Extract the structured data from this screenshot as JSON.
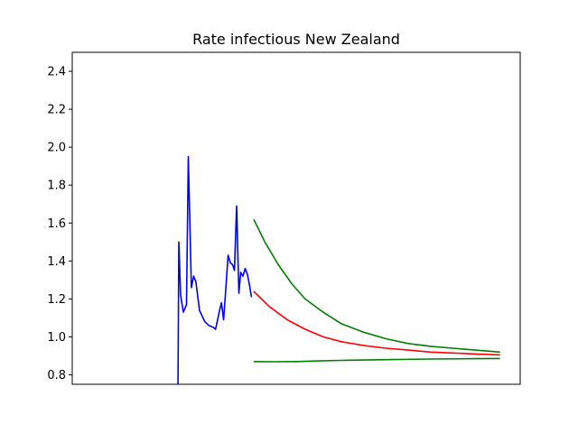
{
  "chart_data": {
    "type": "line",
    "title": "Rate infectious New Zealand",
    "xlabel": "",
    "ylabel": "",
    "ylim": [
      0.75,
      2.5
    ],
    "xlim": [
      0,
      100
    ],
    "x_ticks_visible": false,
    "yticks": [
      "0.8",
      "1.0",
      "1.2",
      "1.4",
      "1.6",
      "1.8",
      "2.0",
      "2.2",
      "2.4"
    ],
    "grid": false,
    "legend": "none",
    "series": [
      {
        "color": "#0000ff",
        "points": [
          [
            23.6,
            0.75
          ],
          [
            23.8,
            1.5
          ],
          [
            24.2,
            1.22
          ],
          [
            24.8,
            1.13
          ],
          [
            25.5,
            1.17
          ],
          [
            25.9,
            1.95
          ],
          [
            26.6,
            1.26
          ],
          [
            27.1,
            1.32
          ],
          [
            27.6,
            1.29
          ],
          [
            28.4,
            1.14
          ],
          [
            29.0,
            1.11
          ],
          [
            29.6,
            1.08
          ],
          [
            30.5,
            1.06
          ],
          [
            31.5,
            1.05
          ],
          [
            32.0,
            1.04
          ],
          [
            32.8,
            1.13
          ],
          [
            33.3,
            1.18
          ],
          [
            33.8,
            1.09
          ],
          [
            34.3,
            1.26
          ],
          [
            34.8,
            1.43
          ],
          [
            35.3,
            1.39
          ],
          [
            35.8,
            1.38
          ],
          [
            36.2,
            1.35
          ],
          [
            36.7,
            1.69
          ],
          [
            37.2,
            1.23
          ],
          [
            37.6,
            1.34
          ],
          [
            38.1,
            1.32
          ],
          [
            38.6,
            1.36
          ],
          [
            39.1,
            1.33
          ],
          [
            39.6,
            1.27
          ],
          [
            40.0,
            1.21
          ]
        ]
      },
      {
        "color": "#ff0000",
        "points": [
          [
            40.5,
            1.24
          ],
          [
            44,
            1.16
          ],
          [
            48,
            1.09
          ],
          [
            52,
            1.04
          ],
          [
            56,
            1.0
          ],
          [
            60,
            0.975
          ],
          [
            65,
            0.955
          ],
          [
            70,
            0.94
          ],
          [
            75,
            0.93
          ],
          [
            80,
            0.92
          ],
          [
            85,
            0.915
          ],
          [
            90,
            0.91
          ],
          [
            95.5,
            0.905
          ]
        ]
      },
      {
        "color": "#008000",
        "points": [
          [
            40.5,
            1.62
          ],
          [
            43,
            1.5
          ],
          [
            46,
            1.38
          ],
          [
            49,
            1.28
          ],
          [
            52,
            1.2
          ],
          [
            56,
            1.13
          ],
          [
            60,
            1.07
          ],
          [
            65,
            1.025
          ],
          [
            70,
            0.99
          ],
          [
            75,
            0.965
          ],
          [
            80,
            0.95
          ],
          [
            85,
            0.94
          ],
          [
            90,
            0.93
          ],
          [
            95.5,
            0.92
          ]
        ]
      },
      {
        "color": "#008000",
        "points": [
          [
            40.5,
            0.87
          ],
          [
            45,
            0.869
          ],
          [
            50,
            0.87
          ],
          [
            55,
            0.873
          ],
          [
            60,
            0.876
          ],
          [
            70,
            0.88
          ],
          [
            80,
            0.883
          ],
          [
            90,
            0.885
          ],
          [
            95.5,
            0.886
          ]
        ]
      }
    ]
  }
}
